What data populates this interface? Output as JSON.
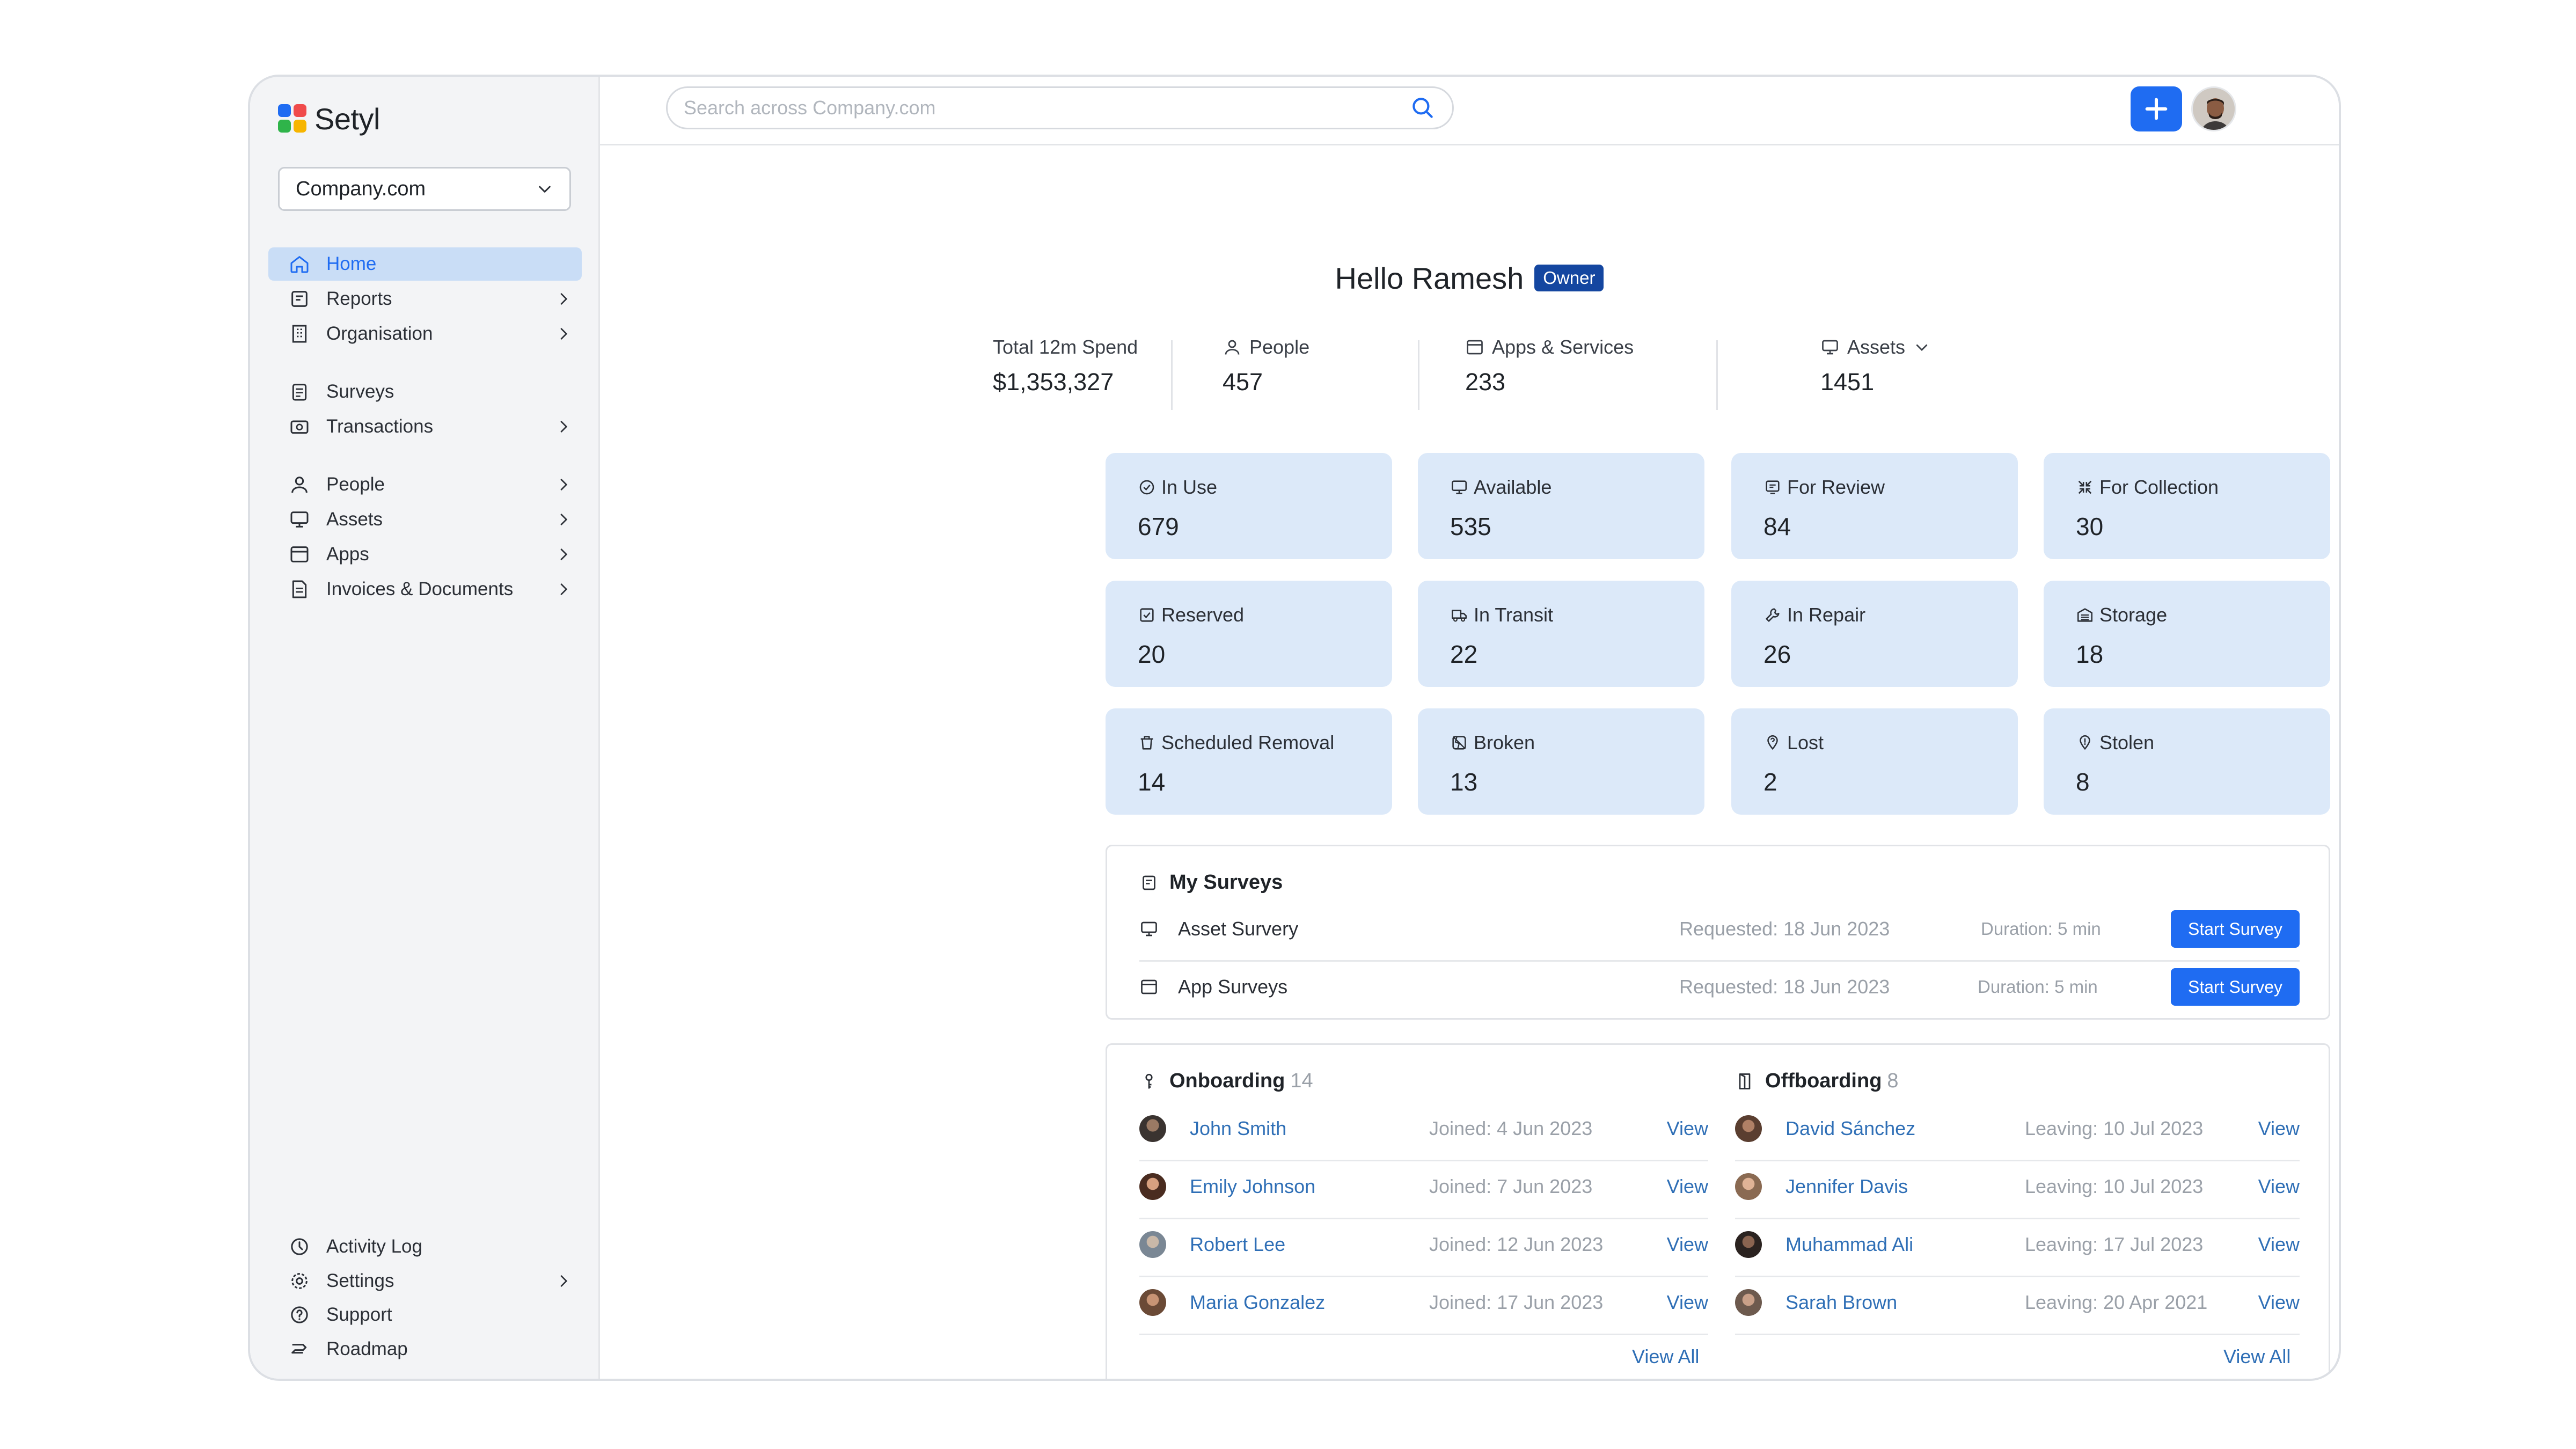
{
  "app": {
    "name": "Setyl"
  },
  "sidebar": {
    "org_selector": "Company.com",
    "items": [
      {
        "label": "Home",
        "icon": "home-icon",
        "active": true,
        "has_arrow": false
      },
      {
        "label": "Reports",
        "icon": "reports-icon",
        "has_arrow": true
      },
      {
        "label": "Organisation",
        "icon": "building-icon",
        "has_arrow": true
      },
      {
        "label": "Surveys",
        "icon": "surveys-icon",
        "has_arrow": false
      },
      {
        "label": "Transactions",
        "icon": "transactions-icon",
        "has_arrow": true
      },
      {
        "label": "People",
        "icon": "person-icon",
        "has_arrow": true
      },
      {
        "label": "Assets",
        "icon": "monitor-icon",
        "has_arrow": true
      },
      {
        "label": "Apps",
        "icon": "apps-icon",
        "has_arrow": true
      },
      {
        "label": "Invoices & Documents",
        "icon": "invoices-icon",
        "has_arrow": true
      }
    ],
    "bottom_items": [
      {
        "label": "Activity Log",
        "icon": "history-icon",
        "has_arrow": false
      },
      {
        "label": "Settings",
        "icon": "gear-icon",
        "has_arrow": true
      },
      {
        "label": "Support",
        "icon": "help-icon",
        "has_arrow": false
      },
      {
        "label": "Roadmap",
        "icon": "roadmap-icon",
        "has_arrow": false
      }
    ]
  },
  "topbar": {
    "search_placeholder": "Search across Company.com"
  },
  "greeting": {
    "text": "Hello Ramesh",
    "role_badge": "Owner"
  },
  "summary": [
    {
      "label": "Total 12m Spend",
      "value": "$1,353,327"
    },
    {
      "label": "People",
      "value": "457"
    },
    {
      "label": "Apps & Services",
      "value": "233"
    },
    {
      "label": "Assets",
      "value": "1451"
    }
  ],
  "asset_cards": [
    {
      "label": "In Use",
      "value": "679",
      "icon": "check-circle-icon"
    },
    {
      "label": "Available",
      "value": "535",
      "icon": "monitor-icon"
    },
    {
      "label": "For Review",
      "value": "84",
      "icon": "review-icon"
    },
    {
      "label": "For Collection",
      "value": "30",
      "icon": "collapse-icon"
    },
    {
      "label": "Reserved",
      "value": "20",
      "icon": "checkbox-icon"
    },
    {
      "label": "In Transit",
      "value": "22",
      "icon": "truck-icon"
    },
    {
      "label": "In Repair",
      "value": "26",
      "icon": "wrench-icon"
    },
    {
      "label": "Storage",
      "value": "18",
      "icon": "warehouse-icon"
    },
    {
      "label": "Scheduled Removal",
      "value": "14",
      "icon": "trash-icon"
    },
    {
      "label": "Broken",
      "value": "13",
      "icon": "broken-icon"
    },
    {
      "label": "Lost",
      "value": "2",
      "icon": "lost-icon"
    },
    {
      "label": "Stolen",
      "value": "8",
      "icon": "stolen-icon"
    }
  ],
  "surveys": {
    "title": "My Surveys",
    "rows": [
      {
        "name": "Asset Survery",
        "requested": "Requested: 18 Jun 2023",
        "duration": "Duration: 5 min",
        "button": "Start Survey"
      },
      {
        "name": "App Surveys",
        "requested": "Requested: 18 Jun 2023",
        "duration": "Duration: 5 min",
        "button": "Start Survey"
      }
    ]
  },
  "onboarding": {
    "title": "Onboarding",
    "count": "14",
    "rows": [
      {
        "name": "John Smith",
        "date": "Joined: 4 Jun 2023",
        "action": "View"
      },
      {
        "name": "Emily Johnson",
        "date": "Joined: 7 Jun 2023",
        "action": "View"
      },
      {
        "name": "Robert Lee",
        "date": "Joined: 12 Jun 2023",
        "action": "View"
      },
      {
        "name": "Maria Gonzalez",
        "date": "Joined: 17 Jun 2023",
        "action": "View"
      }
    ],
    "view_all": "View All"
  },
  "offboarding": {
    "title": "Offboarding",
    "count": "8",
    "rows": [
      {
        "name": "David Sánchez",
        "date": "Leaving: 10 Jul 2023",
        "action": "View"
      },
      {
        "name": "Jennifer Davis",
        "date": "Leaving: 10 Jul 2023",
        "action": "View"
      },
      {
        "name": "Muhammad Ali",
        "date": "Leaving: 17 Jul 2023",
        "action": "View"
      },
      {
        "name": "Sarah Brown",
        "date": "Leaving: 20 Apr 2021",
        "action": "View"
      }
    ],
    "view_all": "View All"
  },
  "colors": {
    "accent": "#1f6cf2",
    "card_bg": "#dce9f9",
    "link": "#2f6fb6",
    "badge": "#1446a0"
  }
}
